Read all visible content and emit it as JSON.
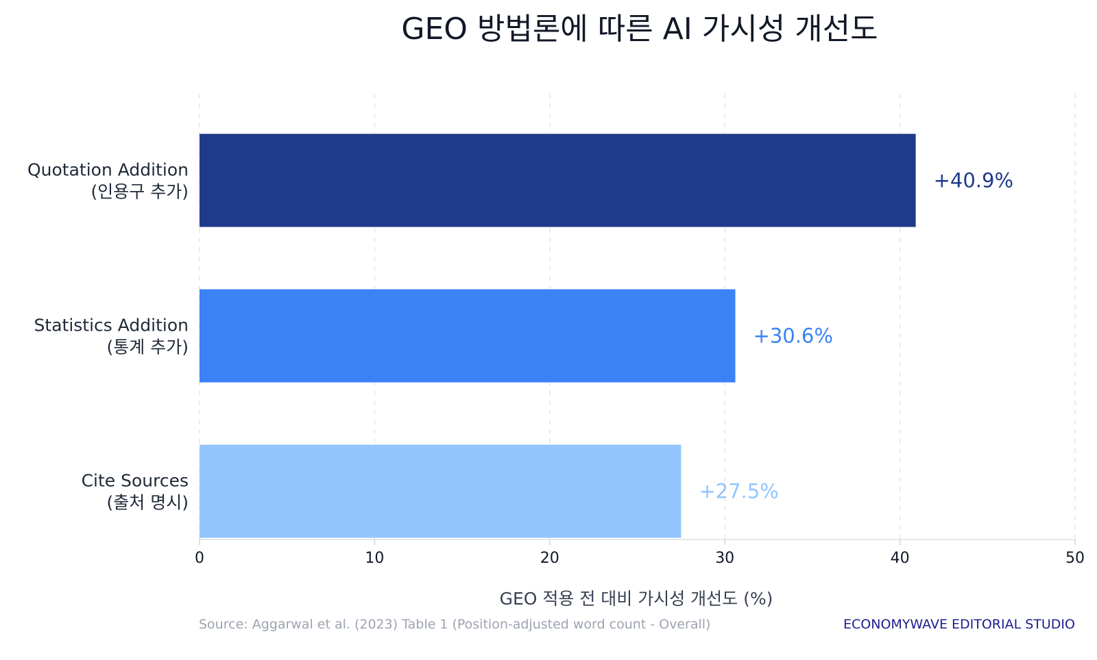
{
  "chart_data": {
    "type": "bar",
    "orientation": "horizontal",
    "title": "GEO 방법론에 따른 AI 가시성 개선도",
    "xlabel": "GEO 적용 전 대비 가시성 개선도 (%)",
    "ylabel": "",
    "xlim": [
      0,
      50
    ],
    "ticks": [
      "0",
      "10",
      "20",
      "30",
      "40",
      "50"
    ],
    "grid": "vertical-dashed",
    "categories": [
      {
        "label_en": "Quotation Addition",
        "label_ko": "(인용구 추가)"
      },
      {
        "label_en": "Statistics Addition",
        "label_ko": "(통계 추가)"
      },
      {
        "label_en": "Cite Sources",
        "label_ko": "(출처 명시)"
      }
    ],
    "values": [
      40.9,
      30.6,
      27.5
    ],
    "data_labels": [
      "+40.9%",
      "+30.6%",
      "+27.5%"
    ],
    "colors": [
      "#1f3a8a",
      "#3b82f6",
      "#93c5fd"
    ]
  },
  "footer": {
    "source": "Source: Aggarwal et al. (2023) Table 1 (Position-adjusted word count - Overall)",
    "credit": "ECONOMYWAVE EDITORIAL STUDIO"
  }
}
